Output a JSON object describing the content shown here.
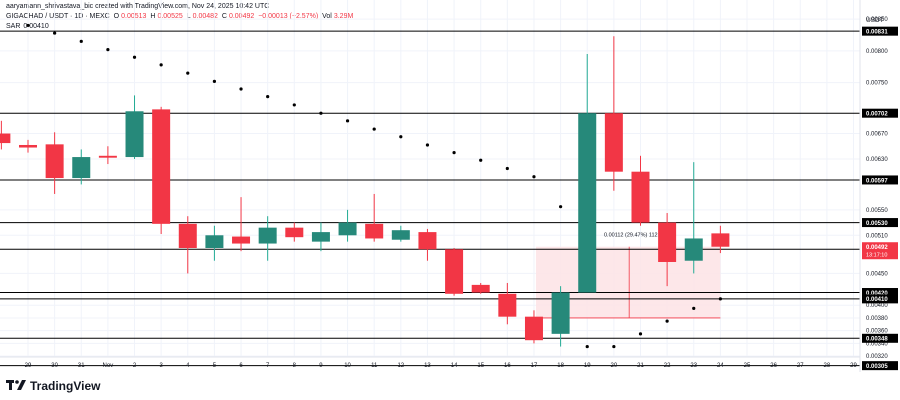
{
  "header": {
    "author_line": "aaryamann_shrivastava_bic created with TradingView.com, Nov 24, 2025 10:42 UTC",
    "symbol": "GIGACHAD / USDT · 1D · MEXC",
    "o_label": "O",
    "o_value": "0.00513",
    "h_label": "H",
    "h_value": "0.00525",
    "l_label": "L",
    "l_value": "0.00482",
    "c_label": "C",
    "c_value": "0.00492",
    "change": "−0.00013 (−2.57%)",
    "vol_label": "Vol",
    "vol_value": "3.29M",
    "sar_label": "SAR",
    "sar_value": "0.00410"
  },
  "price_axis": {
    "currency": "USDT",
    "ticks": [
      "0.00850",
      "0.00800",
      "0.00750",
      "0.00670",
      "0.00630",
      "0.00550",
      "0.00510",
      "0.00450",
      "0.00400",
      "0.00380",
      "0.00360",
      "0.00340",
      "0.00320"
    ]
  },
  "time_axis": {
    "labels": [
      "29",
      "30",
      "31",
      "Nov",
      "2",
      "3",
      "4",
      "5",
      "6",
      "7",
      "8",
      "9",
      "10",
      "11",
      "12",
      "13",
      "14",
      "15",
      "16",
      "17",
      "18",
      "19",
      "20",
      "21",
      "22",
      "23",
      "24",
      "25",
      "26",
      "27",
      "28",
      "29"
    ]
  },
  "measure": {
    "label": "0.00112 (29.47%) 112"
  },
  "current_price": {
    "value": "0.00492",
    "countdown": "13:17:10"
  },
  "footer": {
    "brand": "TradingView"
  },
  "colors": {
    "up": "#22ab94",
    "up_body": "#26897a",
    "down": "#f23645",
    "sar": "#000000",
    "measure_fill": "#fde3e5"
  },
  "chart_data": {
    "type": "candlestick",
    "ylim": [
      0.00295,
      0.0088
    ],
    "horizontal_levels": [
      0.00831,
      0.00702,
      0.00597,
      0.0053,
      0.00488,
      0.0042,
      0.0041,
      0.00348,
      0.00305
    ],
    "candles": [
      {
        "x": "28",
        "o": 0.0067,
        "h": 0.0069,
        "l": 0.00645,
        "c": 0.00655
      },
      {
        "x": "29",
        "o": 0.00652,
        "h": 0.0066,
        "l": 0.0064,
        "c": 0.00648
      },
      {
        "x": "30",
        "o": 0.00653,
        "h": 0.00672,
        "l": 0.00575,
        "c": 0.006
      },
      {
        "x": "31",
        "o": 0.006,
        "h": 0.00645,
        "l": 0.0059,
        "c": 0.00633
      },
      {
        "x": "Nov",
        "o": 0.00635,
        "h": 0.0065,
        "l": 0.00622,
        "c": 0.00632
      },
      {
        "x": "2",
        "o": 0.00633,
        "h": 0.0073,
        "l": 0.0063,
        "c": 0.00705
      },
      {
        "x": "3",
        "o": 0.00708,
        "h": 0.00712,
        "l": 0.00512,
        "c": 0.00528
      },
      {
        "x": "4",
        "o": 0.00528,
        "h": 0.0054,
        "l": 0.0045,
        "c": 0.0049
      },
      {
        "x": "5",
        "o": 0.0049,
        "h": 0.00525,
        "l": 0.0047,
        "c": 0.0051
      },
      {
        "x": "6",
        "o": 0.00508,
        "h": 0.0057,
        "l": 0.00485,
        "c": 0.00497
      },
      {
        "x": "7",
        "o": 0.00497,
        "h": 0.0054,
        "l": 0.0047,
        "c": 0.00522
      },
      {
        "x": "8",
        "o": 0.00522,
        "h": 0.0053,
        "l": 0.005,
        "c": 0.00507
      },
      {
        "x": "9",
        "o": 0.005,
        "h": 0.0053,
        "l": 0.00485,
        "c": 0.00515
      },
      {
        "x": "10",
        "o": 0.0051,
        "h": 0.0055,
        "l": 0.005,
        "c": 0.0053
      },
      {
        "x": "11",
        "o": 0.00528,
        "h": 0.00575,
        "l": 0.005,
        "c": 0.00505
      },
      {
        "x": "12",
        "o": 0.00503,
        "h": 0.00525,
        "l": 0.005,
        "c": 0.00518
      },
      {
        "x": "13",
        "o": 0.00515,
        "h": 0.0052,
        "l": 0.0047,
        "c": 0.00488
      },
      {
        "x": "14",
        "o": 0.00488,
        "h": 0.0049,
        "l": 0.00415,
        "c": 0.00418
      },
      {
        "x": "15",
        "o": 0.00432,
        "h": 0.00435,
        "l": 0.00418,
        "c": 0.0042
      },
      {
        "x": "16",
        "o": 0.00418,
        "h": 0.00435,
        "l": 0.0037,
        "c": 0.00382
      },
      {
        "x": "17",
        "o": 0.00382,
        "h": 0.00392,
        "l": 0.0034,
        "c": 0.00345
      },
      {
        "x": "18",
        "o": 0.00355,
        "h": 0.0043,
        "l": 0.00335,
        "c": 0.0042
      },
      {
        "x": "19",
        "o": 0.0042,
        "h": 0.00795,
        "l": 0.0042,
        "c": 0.00702
      },
      {
        "x": "20",
        "o": 0.00702,
        "h": 0.00823,
        "l": 0.0058,
        "c": 0.0061
      },
      {
        "x": "21",
        "o": 0.0061,
        "h": 0.00635,
        "l": 0.00525,
        "c": 0.0053
      },
      {
        "x": "22",
        "o": 0.0053,
        "h": 0.00545,
        "l": 0.0043,
        "c": 0.00468
      },
      {
        "x": "23",
        "o": 0.0047,
        "h": 0.00625,
        "l": 0.0045,
        "c": 0.00505
      },
      {
        "x": "24",
        "o": 0.00513,
        "h": 0.00525,
        "l": 0.00482,
        "c": 0.00492
      }
    ],
    "sar": [
      {
        "x": "29",
        "v": 0.0084
      },
      {
        "x": "30",
        "v": 0.00828
      },
      {
        "x": "31",
        "v": 0.00815
      },
      {
        "x": "Nov",
        "v": 0.00802
      },
      {
        "x": "2",
        "v": 0.0079
      },
      {
        "x": "3",
        "v": 0.00778
      },
      {
        "x": "4",
        "v": 0.00765
      },
      {
        "x": "5",
        "v": 0.00752
      },
      {
        "x": "6",
        "v": 0.0074
      },
      {
        "x": "7",
        "v": 0.00728
      },
      {
        "x": "8",
        "v": 0.00715
      },
      {
        "x": "9",
        "v": 0.00702
      },
      {
        "x": "10",
        "v": 0.0069
      },
      {
        "x": "11",
        "v": 0.00677
      },
      {
        "x": "12",
        "v": 0.00665
      },
      {
        "x": "13",
        "v": 0.00652
      },
      {
        "x": "14",
        "v": 0.0064
      },
      {
        "x": "15",
        "v": 0.00628
      },
      {
        "x": "16",
        "v": 0.00615
      },
      {
        "x": "17",
        "v": 0.00602
      },
      {
        "x": "18",
        "v": 0.00555
      },
      {
        "x": "19",
        "v": 0.00335
      },
      {
        "x": "20",
        "v": 0.00335
      },
      {
        "x": "21",
        "v": 0.00355
      },
      {
        "x": "22",
        "v": 0.00375
      },
      {
        "x": "23",
        "v": 0.00395
      },
      {
        "x": "24",
        "v": 0.0041
      }
    ],
    "measure_box": {
      "x_start": "17",
      "x_end": "24",
      "y_low": 0.0038,
      "y_high": 0.00492
    }
  }
}
